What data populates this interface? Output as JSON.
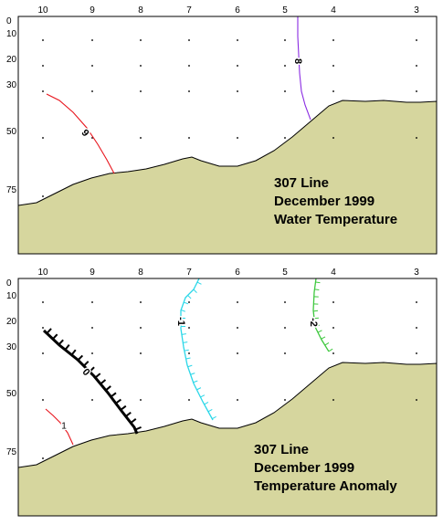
{
  "chart_data": [
    {
      "type": "contour",
      "title_lines": [
        "307 Line",
        "December 1999",
        "Water Temperature"
      ],
      "station_labels": [
        "10",
        "9",
        "8",
        "7",
        "6",
        "5",
        "4",
        "3"
      ],
      "depth_labels": [
        "0",
        "10",
        "20",
        "30",
        "50",
        "75"
      ],
      "contours": [
        {
          "label": "9",
          "color": "#e8141c"
        },
        {
          "label": "8",
          "color": "#8a2be2"
        }
      ],
      "colors": {
        "seafloor": "#d6d69e",
        "border": "#000000"
      }
    },
    {
      "type": "contour",
      "title_lines": [
        "307 Line",
        "December 1999",
        "Temperature Anomaly"
      ],
      "station_labels": [
        "10",
        "9",
        "8",
        "7",
        "6",
        "5",
        "4",
        "3"
      ],
      "depth_labels": [
        "0",
        "10",
        "20",
        "30",
        "50",
        "75"
      ],
      "contours": [
        {
          "label": "1",
          "color": "#e8141c"
        },
        {
          "label": "0",
          "color": "#000000"
        },
        {
          "label": "-1",
          "color": "#2ad7e8"
        },
        {
          "label": "-2",
          "color": "#3ec83e"
        }
      ],
      "colors": {
        "seafloor": "#d6d69e",
        "border": "#000000"
      }
    }
  ]
}
